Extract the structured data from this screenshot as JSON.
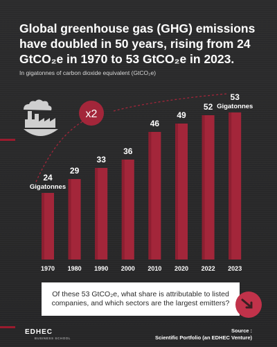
{
  "header": {
    "title": "Global greenhouse gas (GHG) emissions have doubled in 50 years, rising from 24 GtCO₂e in 1970 to 53 GtCO₂e in 2023.",
    "subtitle": "In gigatonnes of carbon dioxide equivalent (GtCO₂e)"
  },
  "chart_data": {
    "type": "bar",
    "categories": [
      "1970",
      "1980",
      "1990",
      "2000",
      "2010",
      "2020",
      "2022",
      "2023"
    ],
    "values": [
      24,
      29,
      33,
      36,
      46,
      49,
      52,
      53
    ],
    "value_labels": [
      "24",
      "29",
      "33",
      "36",
      "46",
      "49",
      "52",
      "53"
    ],
    "unit_label": "Gigatonnes",
    "multiplier_badge": "x2",
    "bar_color": "#a3263a",
    "bar_highlight": "#8d1f31",
    "ylim": [
      0,
      60
    ]
  },
  "footer": {
    "question": "Of these 53 GtCO₂e, what share is attributable to listed companies, and which sectors are the largest emitters?",
    "brand_name": "EDHEC",
    "brand_sub": "BUSINESS SCHOOL",
    "source_label": "Source :",
    "source_value": "Scientific Portfolio (an EDHEC Venture)"
  },
  "icons": {
    "factory": "factory-globe-icon",
    "arrow": "arrow-down-right-icon"
  }
}
